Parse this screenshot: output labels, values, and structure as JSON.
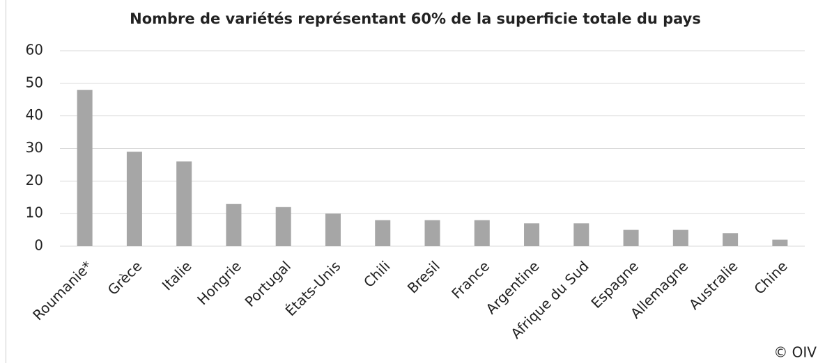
{
  "chart_data": {
    "type": "bar",
    "title": "Nombre de variétés représentant 60% de la superficie totale du pays",
    "categories": [
      "Roumanie*",
      "Grèce",
      "Italie",
      "Hongrie",
      "Portugal",
      "États-Unis",
      "Chili",
      "Bresil",
      "France",
      "Argentine",
      "Afrique du Sud",
      "Espagne",
      "Allemagne",
      "Australie",
      "Chine"
    ],
    "values": [
      48,
      29,
      26,
      13,
      12,
      10,
      8,
      8,
      8,
      7,
      7,
      5,
      5,
      4,
      2
    ],
    "color": "#a6a6a6",
    "ylim": [
      0,
      60
    ],
    "yticks": [
      0,
      10,
      20,
      30,
      40,
      50,
      60
    ],
    "grid": true,
    "credit": "© OIV"
  }
}
